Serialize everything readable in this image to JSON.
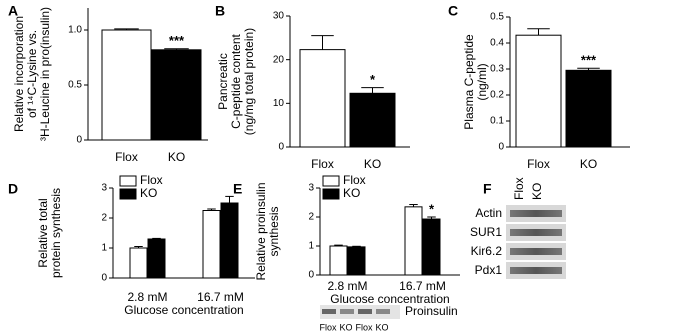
{
  "chart_data": [
    {
      "type": "bar",
      "panel": "A",
      "ylabel": [
        "Relative incorporation",
        "of ¹⁴C-Lysine vs.",
        "³H-Leucine in pro(insulin)"
      ],
      "categories": [
        "Flox",
        "KO"
      ],
      "values": [
        1.0,
        0.82
      ],
      "errors": [
        0.01,
        0.01
      ],
      "colors": [
        "#ffffff",
        "#000000"
      ],
      "ylim": [
        0,
        1.2
      ],
      "yticks": [
        0,
        0.5,
        {
          "value": 1,
          "label": "1.0"
        }
      ],
      "annotations": [
        {
          "text": "***",
          "x": "KO"
        }
      ]
    },
    {
      "type": "bar",
      "panel": "B",
      "ylabel": [
        "Pancreatic",
        "C-peptide content",
        "(ng/mg total protein)"
      ],
      "categories": [
        "Flox",
        "KO"
      ],
      "values": [
        22.3,
        12.3
      ],
      "errors": [
        3.2,
        1.3
      ],
      "colors": [
        "#ffffff",
        "#000000"
      ],
      "ylim": [
        0,
        30
      ],
      "yticks": [
        0,
        10,
        20,
        30
      ],
      "annotations": [
        {
          "text": "*",
          "x": "KO"
        }
      ]
    },
    {
      "type": "bar",
      "panel": "C",
      "ylabel": [
        "Plasma C-peptide",
        "(ng/ml)"
      ],
      "categories": [
        "Flox",
        "KO"
      ],
      "values": [
        0.43,
        0.295
      ],
      "errors": [
        0.025,
        0.008
      ],
      "colors": [
        "#ffffff",
        "#000000"
      ],
      "ylim": [
        0,
        0.5
      ],
      "yticks": [
        0,
        0.1,
        0.2,
        0.3,
        0.4,
        0.5
      ],
      "annotations": [
        {
          "text": "***",
          "x": "KO"
        }
      ]
    },
    {
      "type": "bar",
      "panel": "D",
      "ylabel": [
        "Relative total",
        "protein synthesis"
      ],
      "xlabel": "Glucose concentration",
      "categories": [
        "2.8 mM",
        "16.7 mM"
      ],
      "series": [
        {
          "name": "Flox",
          "color": "#ffffff",
          "values": [
            1.0,
            2.25
          ],
          "errors": [
            0.05,
            0.05
          ]
        },
        {
          "name": "KO",
          "color": "#000000",
          "values": [
            1.3,
            2.5
          ],
          "errors": [
            0.02,
            0.22
          ]
        }
      ],
      "ylim": [
        0,
        3
      ],
      "yticks": [
        0,
        1,
        2,
        3
      ]
    },
    {
      "type": "bar",
      "panel": "E",
      "ylabel": [
        "Relative proinsulin",
        "synthesis"
      ],
      "xlabel": "Glucose concentration",
      "categories": [
        "2.8 mM",
        "16.7 mM"
      ],
      "series": [
        {
          "name": "Flox",
          "color": "#ffffff",
          "values": [
            1.0,
            2.35
          ],
          "errors": [
            0.03,
            0.08
          ]
        },
        {
          "name": "KO",
          "color": "#000000",
          "values": [
            0.97,
            1.93
          ],
          "errors": [
            0.02,
            0.07
          ]
        }
      ],
      "ylim": [
        0,
        3
      ],
      "yticks": [
        0,
        1,
        2,
        3
      ],
      "annotations": [
        {
          "text": "*",
          "x": "16.7 mM",
          "series": "KO"
        }
      ],
      "blot": {
        "label": "Proinsulin",
        "lanes": [
          "Flox",
          "KO",
          "Flox",
          "KO"
        ]
      }
    }
  ],
  "panel_f": {
    "panel": "F",
    "lanes": [
      "Flox",
      "KO"
    ],
    "rows": [
      "Actin",
      "SUR1",
      "Kir6.2",
      "Pdx1"
    ]
  }
}
